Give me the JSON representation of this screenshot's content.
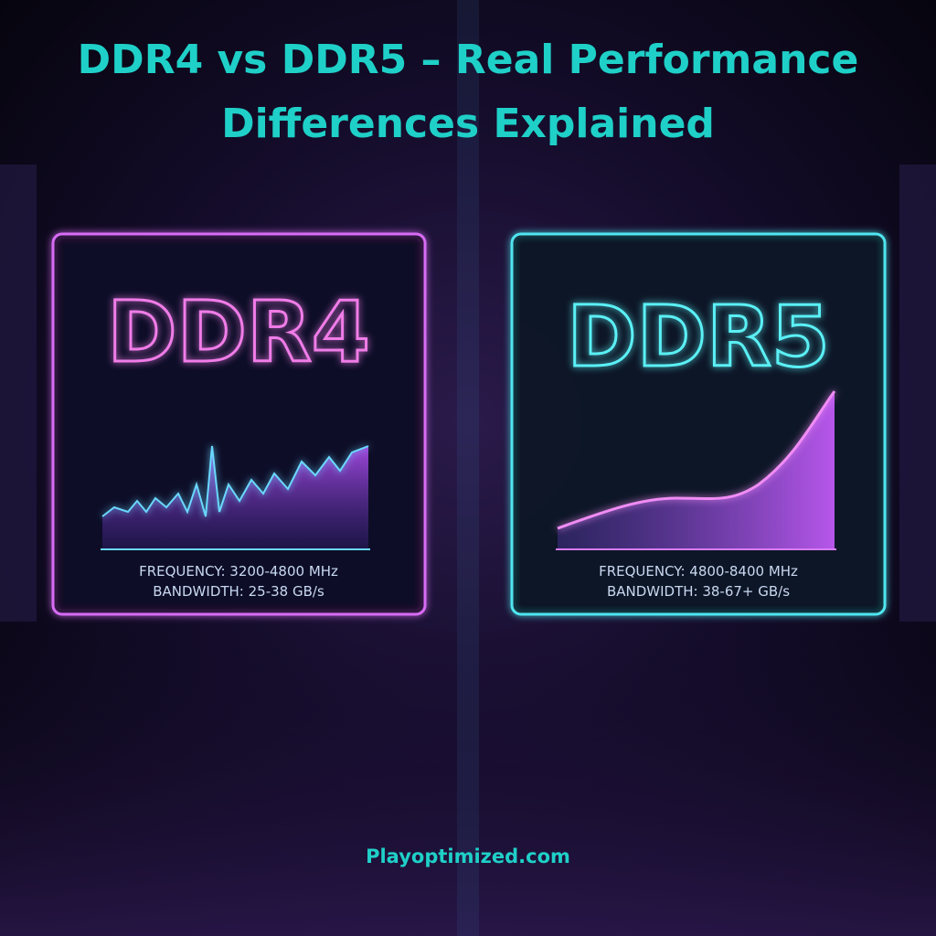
{
  "header": {
    "title_lines": [
      "DDR4 vs DDR5 – Real Performance",
      "Differences Explained"
    ]
  },
  "panels": [
    {
      "label": "DDR4",
      "frequency": "FREQUENCY: 3200-4800 MHz",
      "bandwidth": "BANDWIDTH: 25-38 GB/s"
    },
    {
      "label": "DDR5",
      "frequency": "FREQUENCY: 4800-8400 MHz",
      "bandwidth": "BANDWIDTH: 38-67+ GB/s"
    }
  ],
  "footer": {
    "site": "Playoptimized.com"
  }
}
